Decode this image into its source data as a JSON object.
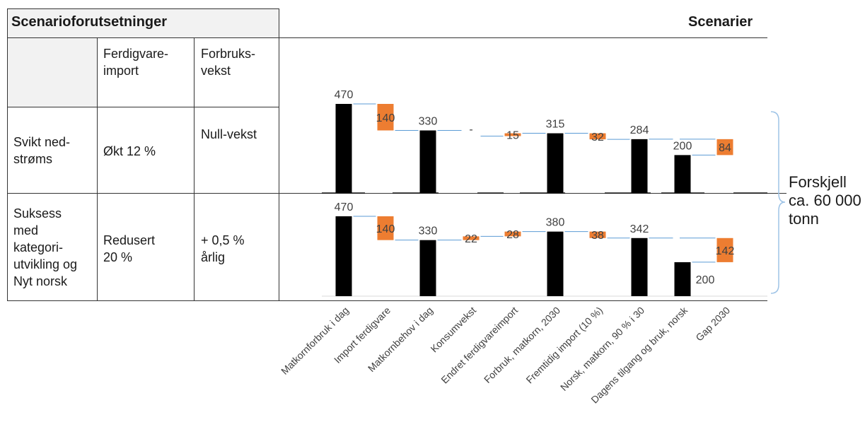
{
  "table": {
    "title": "Scenarioforutsetninger",
    "col_headers": [
      "Ferdigvare-\nimport",
      "Forbruks-\nvekst"
    ],
    "rows": [
      {
        "scenario": "Svikt ned-\nstrøms",
        "import": "Økt 12 %",
        "growth": "Null-vekst"
      },
      {
        "scenario": "Suksess\nmed\nkategori-\nutvikling og\nNyt norsk",
        "import": "Redusert\n20 %",
        "growth": "+ 0,5 %\nårlig"
      }
    ]
  },
  "scenarier_label": "Scenarier",
  "brace_label": "Forskjell\nca. 60 000\ntonn",
  "colors": {
    "total": "#000000",
    "delta": "#ed7d31",
    "connector": "#5b9bd5",
    "border": "#333333",
    "header_bg": "#f2f2f2",
    "brace": "#9dc3e6"
  },
  "chart_data": {
    "type": "bar",
    "categories": [
      "Matkornforbruk i dag",
      "Import ferdigvare",
      "Matkornbehov i dag",
      "Konsumvekst",
      "Endret ferdigvareimport",
      "Forbruk, matkorn, 2030",
      "Fremtidig import (10 %)",
      "Norsk, matkorn, 90 % i 30",
      "Dagens tilgang og bruk, norsk",
      "Gap 2030"
    ],
    "series": [
      {
        "scenario_index": 0,
        "values": [
          470,
          140,
          330,
          null,
          15,
          315,
          32,
          284,
          200,
          84
        ],
        "labels": [
          "470",
          "140",
          "330",
          "-",
          "15",
          "315",
          "32",
          "284",
          "200",
          "84"
        ],
        "kinds": [
          "total",
          "delta",
          "total",
          "none",
          "delta",
          "total",
          "delta",
          "total",
          "total",
          "delta"
        ]
      },
      {
        "scenario_index": 1,
        "values": [
          470,
          140,
          330,
          22,
          28,
          380,
          38,
          342,
          200,
          142
        ],
        "labels": [
          "470",
          "140",
          "330",
          "22",
          "28",
          "380",
          "38",
          "342",
          "200",
          "142"
        ],
        "kinds": [
          "total",
          "delta",
          "total",
          "delta",
          "delta",
          "total",
          "delta",
          "total",
          "total",
          "delta"
        ]
      }
    ],
    "ylim": [
      0,
      500
    ]
  }
}
